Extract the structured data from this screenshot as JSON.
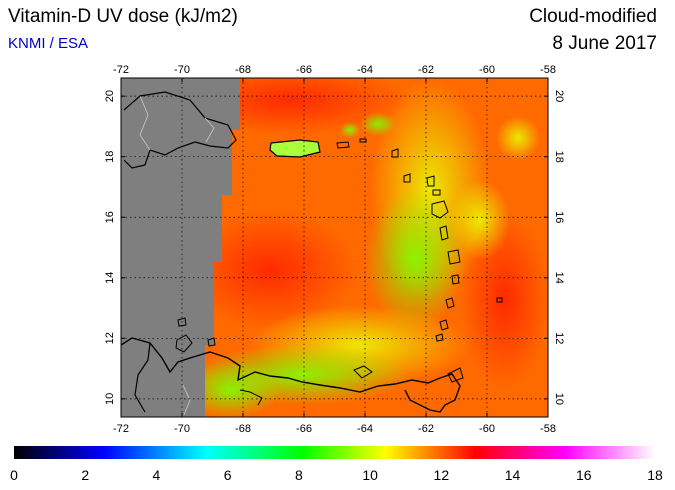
{
  "header": {
    "title": "Vitamin-D UV dose (kJ/m2)",
    "source": "KNMI / ESA",
    "product": "Cloud-modified",
    "date": "8 June 2017"
  },
  "map": {
    "lon_range": [
      -72,
      -58
    ],
    "lat_range": [
      9.4,
      20.6
    ],
    "lon_ticks": [
      "-72",
      "-70",
      "-68",
      "-66",
      "-64",
      "-62",
      "-60",
      "-58"
    ],
    "lon_tick_values": [
      -72,
      -70,
      -68,
      -66,
      -64,
      -62,
      -60,
      -58
    ],
    "lat_ticks": [
      "10",
      "12",
      "14",
      "16",
      "18",
      "20"
    ],
    "lat_tick_values": [
      10,
      12,
      14,
      16,
      18,
      20
    ],
    "no_data_color": "#7f7f7f",
    "dominant_color": "#ff6a00"
  },
  "colorbar": {
    "labels": [
      "0",
      "2",
      "4",
      "6",
      "8",
      "10",
      "12",
      "14",
      "16",
      "18"
    ],
    "values": [
      0,
      2,
      4,
      6,
      8,
      10,
      12,
      14,
      16,
      18
    ],
    "colors": [
      "#000000",
      "#0000ff",
      "#00ffff",
      "#00ff00",
      "#ffff00",
      "#ff0000",
      "#ff00ff",
      "#ffffff"
    ]
  }
}
